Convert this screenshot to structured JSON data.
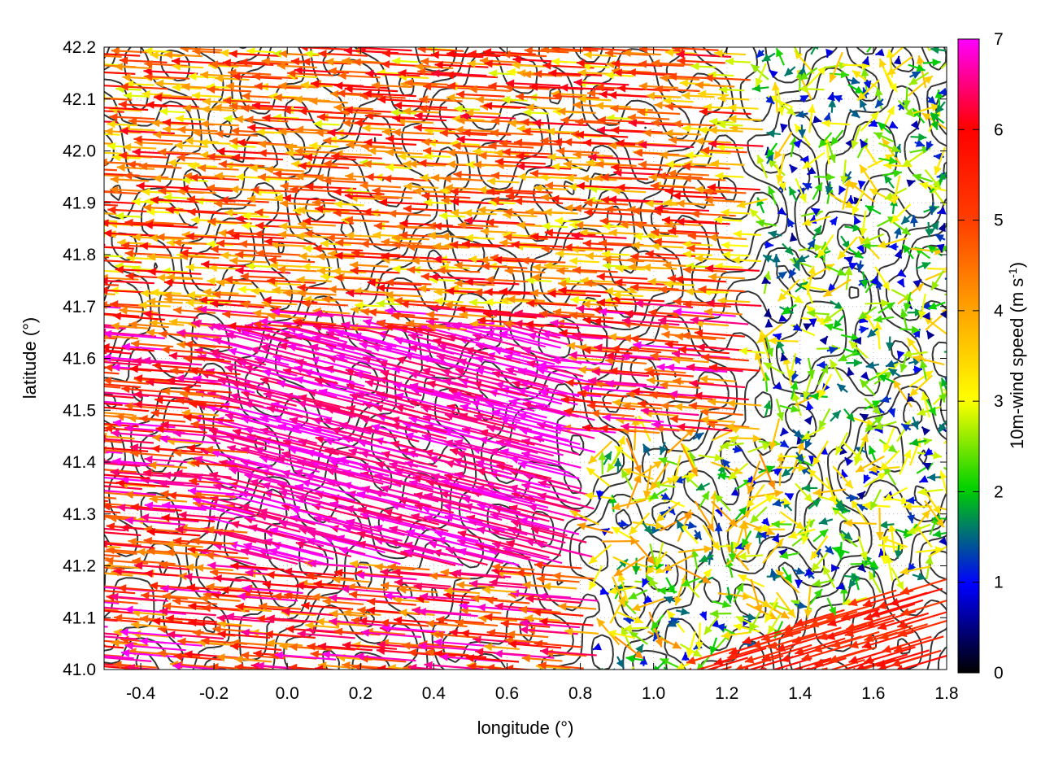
{
  "chart_data": {
    "type": "vector-field",
    "xlabel": "longitude (°)",
    "ylabel": "latitude (°)",
    "xlim": [
      -0.5,
      1.8
    ],
    "ylim": [
      41.0,
      42.2
    ],
    "x_ticks": [
      "-0.4",
      "-0.2",
      "0.0",
      "0.2",
      "0.4",
      "0.6",
      "0.8",
      "1.0",
      "1.2",
      "1.4",
      "1.6",
      "1.8"
    ],
    "y_ticks": [
      "41.0",
      "41.1",
      "41.2",
      "41.3",
      "41.4",
      "41.5",
      "41.6",
      "41.7",
      "41.8",
      "41.9",
      "42.0",
      "42.1",
      "42.2"
    ],
    "colorbar": {
      "label": "10m-wind speed (m s-1)",
      "label_main": "10m-wind speed (m s",
      "label_sup": "-1",
      "label_end": ")",
      "range": [
        0,
        7
      ],
      "ticks": [
        "0",
        "1",
        "2",
        "3",
        "4",
        "5",
        "6",
        "7"
      ],
      "palette": [
        "#000000",
        "#0000ff",
        "#00d000",
        "#ffff00",
        "#ffa500",
        "#ff0000",
        "#ff00ff"
      ]
    },
    "grid": "dotted",
    "contours": "topography (dark grey lines)",
    "wind_regions": [
      {
        "region": "west (lon -0.5 to 0.3)",
        "direction": "from east toward west",
        "speed_range": [
          4,
          7
        ]
      },
      {
        "region": "central-south (lon 0.0 to 0.8, lat 41.2 to 41.6)",
        "direction": "toward west-northwest",
        "speed_range": [
          6.5,
          7
        ]
      },
      {
        "region": "north-central (lat 41.7 to 42.2)",
        "direction": "toward west",
        "speed_range": [
          3,
          6
        ]
      },
      {
        "region": "east (lon 1.3 to 1.8)",
        "direction": "variable",
        "speed_range": [
          0.5,
          3
        ]
      },
      {
        "region": "southeast corner (lon 1.1 to 1.8, lat 41.0 to 41.2)",
        "direction": "toward southwest",
        "speed_range": [
          5,
          6
        ]
      }
    ]
  }
}
